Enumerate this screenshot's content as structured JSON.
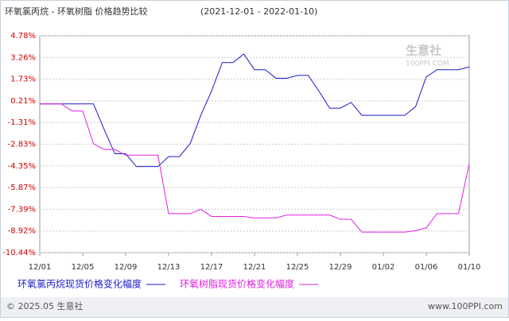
{
  "chart_data": {
    "type": "line",
    "title": "环氧氯丙烷 - 环氧树脂 价格趋势比较",
    "subtitle": "(2021-12-01 - 2022-01-10)",
    "watermark": "生意社",
    "watermark_url": "100PPI.COM",
    "categories": [
      "12/01",
      null,
      null,
      null,
      "12/05",
      null,
      null,
      null,
      "12/09",
      null,
      null,
      null,
      "12/13",
      null,
      null,
      null,
      "12/17",
      null,
      null,
      null,
      "12/21",
      null,
      null,
      null,
      "12/25",
      null,
      null,
      null,
      "12/29",
      null,
      null,
      null,
      "01/02",
      null,
      null,
      null,
      "01/06",
      null,
      null,
      null,
      "01/10"
    ],
    "ylim": [
      -10.44,
      4.78
    ],
    "yticks": [
      {
        "value": 4.78,
        "label": "4.78%"
      },
      {
        "value": 3.26,
        "label": "3.26%"
      },
      {
        "value": 1.73,
        "label": "1.73%"
      },
      {
        "value": 0.21,
        "label": "0.21%"
      },
      {
        "value": -1.31,
        "label": "-1.31%"
      },
      {
        "value": -2.83,
        "label": "-2.83%"
      },
      {
        "value": -4.35,
        "label": "-4.35%"
      },
      {
        "value": -5.87,
        "label": "-5.87%"
      },
      {
        "value": -7.39,
        "label": "-7.39%"
      },
      {
        "value": -8.92,
        "label": "-8.92%"
      },
      {
        "value": -10.44,
        "label": "-10.44%"
      }
    ],
    "grid": true,
    "series": [
      {
        "name": "环氧氯丙烷现货价格变化幅度",
        "color": "#1a1acc",
        "values": [
          0,
          0,
          0,
          0,
          0,
          0,
          -1.8,
          -3.5,
          -3.5,
          -4.4,
          -4.4,
          -4.4,
          -3.7,
          -3.7,
          -2.8,
          -0.8,
          0.9,
          2.9,
          2.9,
          3.5,
          2.4,
          2.4,
          1.8,
          1.8,
          2.0,
          2.0,
          0.9,
          -0.3,
          -0.3,
          0.1,
          -0.8,
          -0.8,
          -0.8,
          -0.8,
          -0.8,
          -0.2,
          1.9,
          2.4,
          2.4,
          2.4,
          2.6
        ]
      },
      {
        "name": "环氧树脂现货价格变化幅度",
        "color": "#e020e0",
        "values": [
          0,
          0,
          0,
          -0.5,
          -0.5,
          -2.8,
          -3.2,
          -3.2,
          -3.6,
          -3.6,
          -3.6,
          -3.6,
          -7.7,
          -7.7,
          -7.7,
          -7.4,
          -7.9,
          -7.9,
          -7.9,
          -7.9,
          -8.0,
          -8.0,
          -8.0,
          -7.8,
          -7.8,
          -7.8,
          -7.8,
          -7.8,
          -8.1,
          -8.1,
          -9.0,
          -9.0,
          -9.0,
          -9.0,
          -9.0,
          -8.9,
          -8.7,
          -7.7,
          -7.7,
          -7.7,
          -4.2
        ]
      }
    ],
    "footer_left": "© 2025.05 生意社",
    "footer_right": "www.100PPI.com"
  }
}
